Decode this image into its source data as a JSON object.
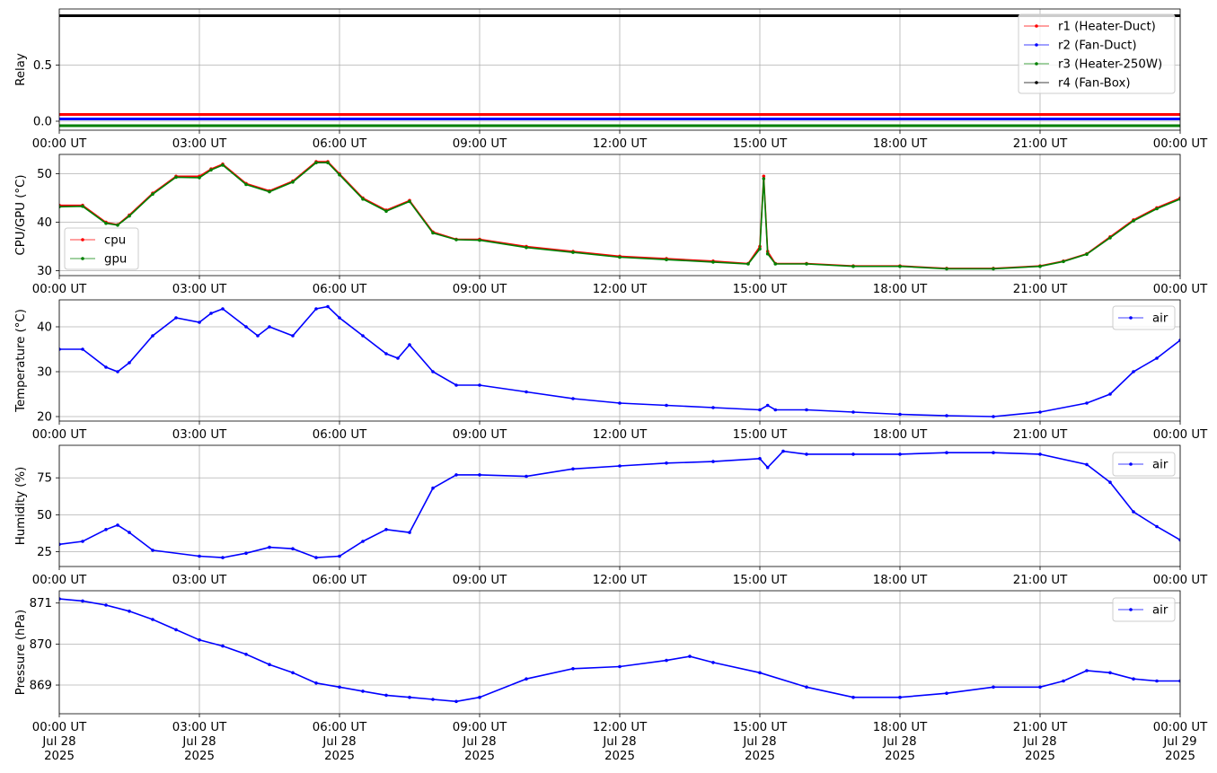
{
  "figure": {
    "time_ticks": [
      "00:00 UT",
      "03:00 UT",
      "06:00 UT",
      "09:00 UT",
      "12:00 UT",
      "15:00 UT",
      "18:00 UT",
      "21:00 UT",
      "00:00 UT"
    ],
    "date_ticks": [
      "Jul 28",
      "Jul 28",
      "Jul 28",
      "Jul 28",
      "Jul 28",
      "Jul 28",
      "Jul 28",
      "Jul 28",
      "Jul 29"
    ],
    "year_ticks": [
      "2025",
      "2025",
      "2025",
      "2025",
      "2025",
      "2025",
      "2025",
      "2025",
      "2025"
    ]
  },
  "chart_data": [
    {
      "type": "line",
      "ylabel": "Relay",
      "xlim": [
        "2025-07-28 00:00",
        "2025-07-29 00:00"
      ],
      "ylim": [
        -0.08,
        1.0
      ],
      "yticks": [
        0.0,
        0.5
      ],
      "ytick_labels": [
        "0.0",
        "0.5"
      ],
      "grid": true,
      "legend": "top-right",
      "x": [
        "00:00",
        "24:00"
      ],
      "series": [
        {
          "name": "r1 (Heater-Duct)",
          "color": "#ff0000",
          "values": [
            0.06,
            0.06
          ]
        },
        {
          "name": "r2 (Fan-Duct)",
          "color": "#0000ff",
          "values": [
            0.02,
            0.02
          ]
        },
        {
          "name": "r3 (Heater-250W)",
          "color": "#008000",
          "values": [
            -0.04,
            -0.04
          ]
        },
        {
          "name": "r4 (Fan-Box)",
          "color": "#000000",
          "values": [
            0.94,
            0.94
          ]
        }
      ]
    },
    {
      "type": "line",
      "ylabel": "CPU/GPU (°C)",
      "xlim": [
        "2025-07-28 00:00",
        "2025-07-29 00:00"
      ],
      "ylim": [
        29,
        54
      ],
      "yticks": [
        30,
        40,
        50
      ],
      "ytick_labels": [
        "30",
        "40",
        "50"
      ],
      "grid": true,
      "legend": "lower-left",
      "x": [
        "00:00",
        "00:30",
        "01:00",
        "01:15",
        "01:30",
        "02:00",
        "02:30",
        "03:00",
        "03:15",
        "03:30",
        "04:00",
        "04:30",
        "05:00",
        "05:30",
        "05:45",
        "06:00",
        "06:30",
        "07:00",
        "07:30",
        "08:00",
        "08:30",
        "09:00",
        "10:00",
        "11:00",
        "12:00",
        "13:00",
        "14:00",
        "14:45",
        "15:00",
        "15:05",
        "15:10",
        "15:20",
        "16:00",
        "17:00",
        "18:00",
        "19:00",
        "20:00",
        "21:00",
        "21:30",
        "22:00",
        "22:30",
        "23:00",
        "23:30",
        "24:00"
      ],
      "series": [
        {
          "name": "cpu",
          "color": "#ff0000",
          "values": [
            43.5,
            43.5,
            40.0,
            39.5,
            41.5,
            46.0,
            49.5,
            49.5,
            51.0,
            52.0,
            48.0,
            46.5,
            48.5,
            52.5,
            52.5,
            50.0,
            45.0,
            42.5,
            44.5,
            38.0,
            36.5,
            36.5,
            35.0,
            34.0,
            33.0,
            32.5,
            32.0,
            31.5,
            35.0,
            49.5,
            34.0,
            31.5,
            31.5,
            31.0,
            31.0,
            30.5,
            30.5,
            31.0,
            32.0,
            33.5,
            37.0,
            40.5,
            43.0,
            45.0
          ]
        },
        {
          "name": "gpu",
          "color": "#008000",
          "values": [
            43.2,
            43.3,
            39.8,
            39.4,
            41.3,
            45.8,
            49.3,
            49.2,
            50.8,
            51.8,
            47.8,
            46.3,
            48.3,
            52.3,
            52.3,
            49.8,
            44.8,
            42.3,
            44.3,
            37.8,
            36.4,
            36.3,
            34.8,
            33.8,
            32.8,
            32.3,
            31.8,
            31.4,
            34.5,
            49.0,
            33.5,
            31.4,
            31.4,
            30.9,
            30.9,
            30.4,
            30.4,
            30.9,
            31.9,
            33.4,
            36.8,
            40.3,
            42.8,
            44.8
          ]
        }
      ]
    },
    {
      "type": "line",
      "ylabel": "Temperature (°C)",
      "xlim": [
        "2025-07-28 00:00",
        "2025-07-29 00:00"
      ],
      "ylim": [
        19,
        46
      ],
      "yticks": [
        20,
        30,
        40
      ],
      "ytick_labels": [
        "20",
        "30",
        "40"
      ],
      "grid": true,
      "legend": "top-right",
      "x": [
        "00:00",
        "00:30",
        "01:00",
        "01:15",
        "01:30",
        "02:00",
        "02:30",
        "03:00",
        "03:15",
        "03:30",
        "04:00",
        "04:15",
        "04:30",
        "05:00",
        "05:30",
        "05:45",
        "06:00",
        "06:30",
        "07:00",
        "07:15",
        "07:30",
        "08:00",
        "08:30",
        "09:00",
        "10:00",
        "11:00",
        "12:00",
        "13:00",
        "14:00",
        "15:00",
        "15:10",
        "15:20",
        "16:00",
        "17:00",
        "18:00",
        "19:00",
        "20:00",
        "21:00",
        "22:00",
        "22:30",
        "23:00",
        "23:30",
        "24:00"
      ],
      "series": [
        {
          "name": "air",
          "color": "#0000ff",
          "values": [
            35.0,
            35.0,
            31.0,
            30.0,
            32.0,
            38.0,
            42.0,
            41.0,
            43.0,
            44.0,
            40.0,
            38.0,
            40.0,
            38.0,
            44.0,
            44.5,
            42.0,
            38.0,
            34.0,
            33.0,
            36.0,
            30.0,
            27.0,
            27.0,
            25.5,
            24.0,
            23.0,
            22.5,
            22.0,
            21.5,
            22.5,
            21.5,
            21.5,
            21.0,
            20.5,
            20.2,
            20.0,
            21.0,
            23.0,
            25.0,
            30.0,
            33.0,
            37.0
          ]
        }
      ]
    },
    {
      "type": "line",
      "ylabel": "Humidity (%)",
      "xlim": [
        "2025-07-28 00:00",
        "2025-07-29 00:00"
      ],
      "ylim": [
        15,
        97
      ],
      "yticks": [
        25,
        50,
        75
      ],
      "ytick_labels": [
        "25",
        "50",
        "75"
      ],
      "grid": true,
      "legend": "top-right",
      "x": [
        "00:00",
        "00:30",
        "01:00",
        "01:15",
        "01:30",
        "02:00",
        "03:00",
        "03:30",
        "04:00",
        "04:30",
        "05:00",
        "05:30",
        "06:00",
        "06:30",
        "07:00",
        "07:30",
        "08:00",
        "08:30",
        "09:00",
        "10:00",
        "11:00",
        "12:00",
        "13:00",
        "14:00",
        "15:00",
        "15:10",
        "15:30",
        "16:00",
        "17:00",
        "18:00",
        "19:00",
        "20:00",
        "21:00",
        "22:00",
        "22:30",
        "23:00",
        "23:30",
        "24:00"
      ],
      "series": [
        {
          "name": "air",
          "color": "#0000ff",
          "values": [
            30.0,
            32.0,
            40.0,
            43.0,
            38.0,
            26.0,
            22.0,
            21.0,
            24.0,
            28.0,
            27.0,
            21.0,
            22.0,
            32.0,
            40.0,
            38.0,
            68.0,
            77.0,
            77.0,
            76.0,
            81.0,
            83.0,
            85.0,
            86.0,
            88.0,
            82.0,
            93.0,
            91.0,
            91.0,
            91.0,
            92.0,
            92.0,
            91.0,
            84.0,
            72.0,
            52.0,
            42.0,
            33.0
          ]
        }
      ]
    },
    {
      "type": "line",
      "ylabel": "Pressure (hPa)",
      "xlim": [
        "2025-07-28 00:00",
        "2025-07-29 00:00"
      ],
      "ylim": [
        868.3,
        871.3
      ],
      "yticks": [
        869,
        870,
        871
      ],
      "ytick_labels": [
        "869",
        "870",
        "871"
      ],
      "grid": true,
      "legend": "top-right",
      "x": [
        "00:00",
        "00:30",
        "01:00",
        "01:30",
        "02:00",
        "02:30",
        "03:00",
        "03:30",
        "04:00",
        "04:30",
        "05:00",
        "05:30",
        "06:00",
        "06:30",
        "07:00",
        "07:30",
        "08:00",
        "08:30",
        "09:00",
        "10:00",
        "11:00",
        "12:00",
        "13:00",
        "13:30",
        "14:00",
        "15:00",
        "16:00",
        "17:00",
        "18:00",
        "19:00",
        "20:00",
        "21:00",
        "21:30",
        "22:00",
        "22:30",
        "23:00",
        "23:30",
        "24:00"
      ],
      "series": [
        {
          "name": "air",
          "color": "#0000ff",
          "values": [
            871.1,
            871.05,
            870.95,
            870.8,
            870.6,
            870.35,
            870.1,
            869.95,
            869.75,
            869.5,
            869.3,
            869.05,
            868.95,
            868.85,
            868.75,
            868.7,
            868.65,
            868.6,
            868.7,
            869.15,
            869.4,
            869.45,
            869.6,
            869.7,
            869.55,
            869.3,
            868.95,
            868.7,
            868.7,
            868.8,
            868.95,
            868.95,
            869.1,
            869.35,
            869.3,
            869.15,
            869.1,
            869.1
          ]
        }
      ]
    }
  ]
}
